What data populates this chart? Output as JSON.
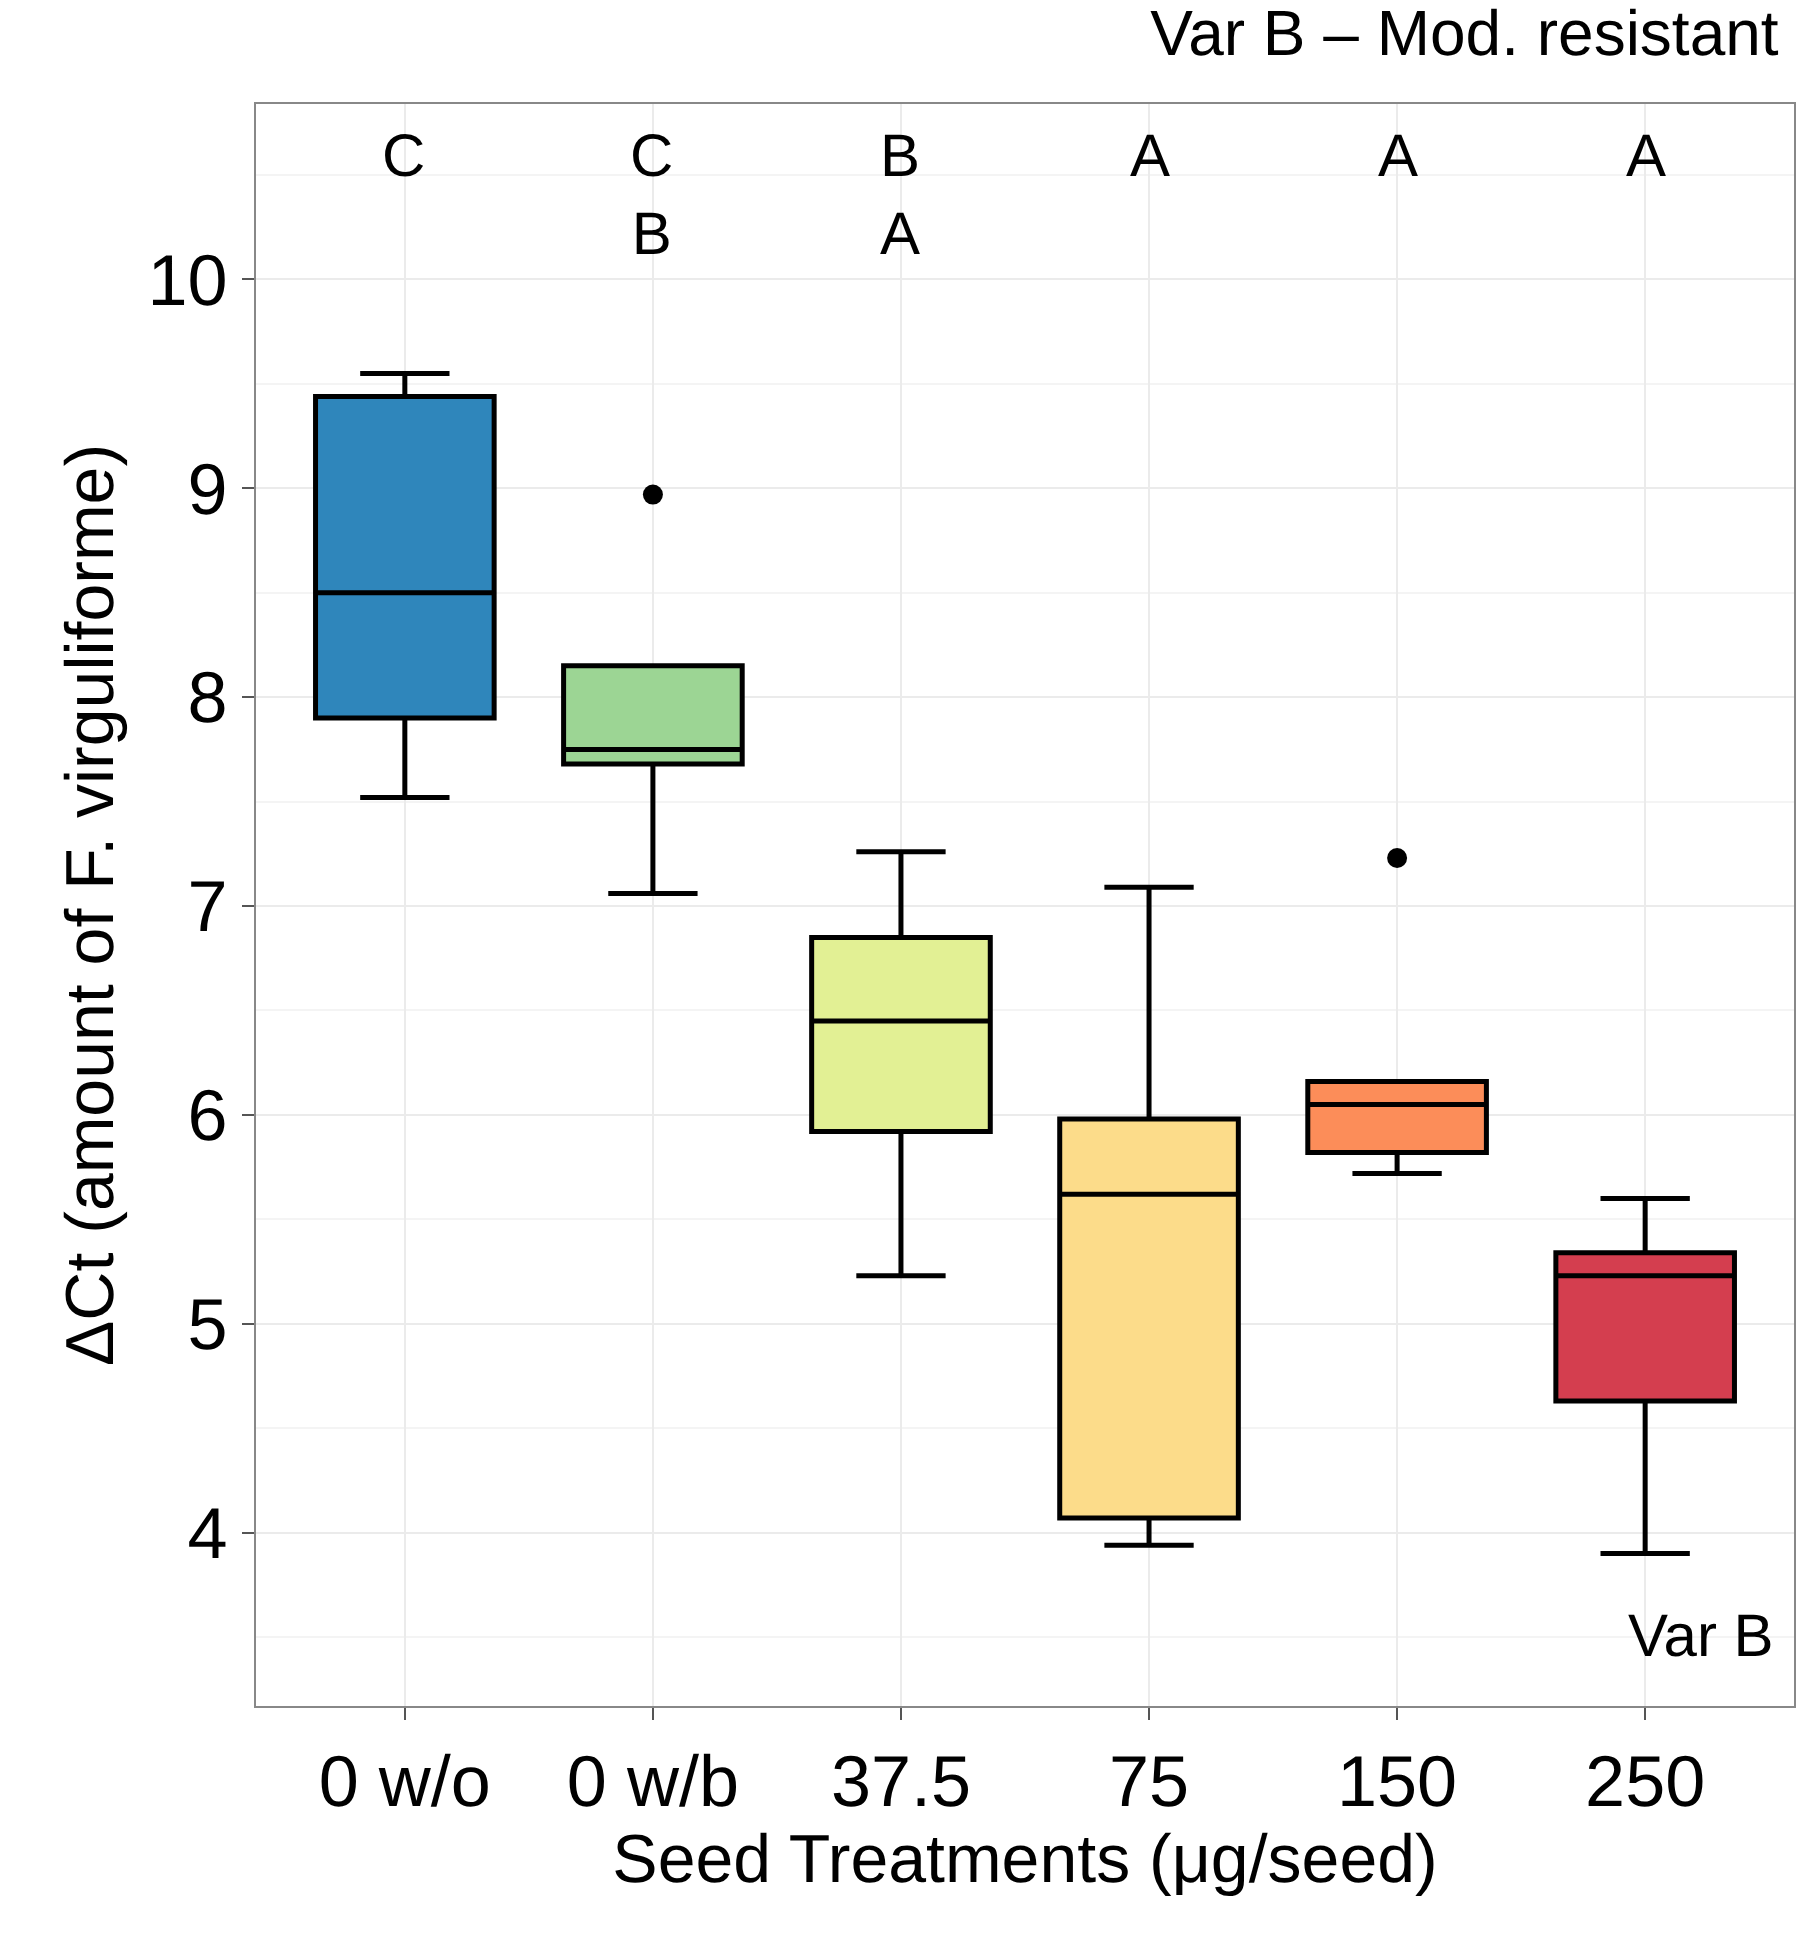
{
  "chart_data": {
    "type": "box",
    "title": "Var B – Mod. resistant",
    "xlabel": "Seed Treatments (μg/seed)",
    "ylabel": "ΔCt (amount of F. virguliforme)",
    "categories": [
      "0 w/o",
      "0 w/b",
      "37.5",
      "75",
      "150",
      "250"
    ],
    "colors": [
      "#2f86bb",
      "#9cd594",
      "#e2f094",
      "#fcdc8a",
      "#fc8d59",
      "#d43e4f"
    ],
    "boxes": [
      {
        "low": 7.52,
        "q1": 7.9,
        "median": 8.5,
        "q3": 9.44,
        "high": 9.55
      },
      {
        "low": 7.06,
        "q1": 7.68,
        "median": 7.75,
        "q3": 8.15,
        "high": 8.15,
        "outliers": [
          8.97
        ]
      },
      {
        "low": 5.23,
        "q1": 5.92,
        "median": 6.45,
        "q3": 6.85,
        "high": 7.26
      },
      {
        "low": 3.94,
        "q1": 4.07,
        "median": 5.62,
        "q3": 5.98,
        "high": 7.09
      },
      {
        "low": 5.72,
        "q1": 5.82,
        "median": 6.05,
        "q3": 6.16,
        "high": 6.16,
        "outliers": [
          7.23
        ]
      },
      {
        "low": 3.9,
        "q1": 4.63,
        "median": 5.23,
        "q3": 5.34,
        "high": 5.6
      }
    ],
    "annotations": [
      "C",
      "C\nB",
      "\nB\nA",
      "\n\nA",
      "\n\nA",
      "\n\nA",
      "Var B"
    ],
    "ylim": [
      3.17,
      10.84
    ],
    "yticks": [
      4,
      5,
      6,
      7,
      8,
      9,
      10
    ],
    "grid": true,
    "legend": false
  }
}
